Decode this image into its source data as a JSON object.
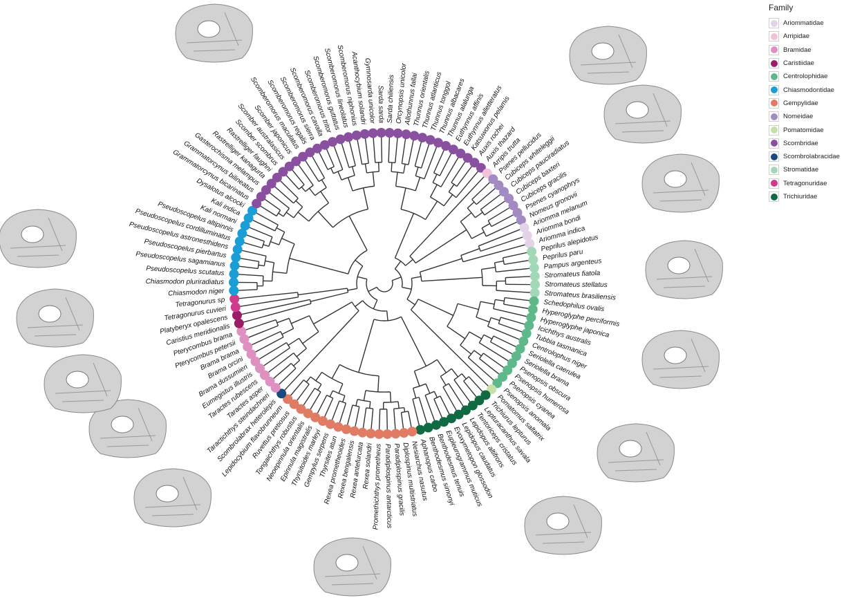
{
  "legend": {
    "title": "Family",
    "items": [
      {
        "label": "Ariommatidae",
        "color": "#e3d3e8"
      },
      {
        "label": "Arripidae",
        "color": "#f2c2da"
      },
      {
        "label": "Bramidae",
        "color": "#de90c0"
      },
      {
        "label": "Caristiidae",
        "color": "#9c1c68"
      },
      {
        "label": "Centrolophidae",
        "color": "#5fb88a"
      },
      {
        "label": "Chiasmodontidae",
        "color": "#1b9ed6"
      },
      {
        "label": "Gempylidae",
        "color": "#e07c64"
      },
      {
        "label": "Nomeidae",
        "color": "#a28ac2"
      },
      {
        "label": "Pomatomidae",
        "color": "#c7e0a6"
      },
      {
        "label": "Scombridae",
        "color": "#8a50a0"
      },
      {
        "label": "Scombrolabracidae",
        "color": "#1a4a80"
      },
      {
        "label": "Stromatidae",
        "color": "#a2d8b8"
      },
      {
        "label": "Tetragonuridae",
        "color": "#d03c8c"
      },
      {
        "label": "Trichiuridae",
        "color": "#0f6a42"
      }
    ]
  },
  "tips": [
    {
      "name": "Sarda chiliensis",
      "family": "Scombridae"
    },
    {
      "name": "Orcynopsis unicolor",
      "family": "Scombridae"
    },
    {
      "name": "Allothunnus fallai",
      "family": "Scombridae"
    },
    {
      "name": "Thunnus orientalis",
      "family": "Scombridae"
    },
    {
      "name": "Thunnus atlanticus",
      "family": "Scombridae"
    },
    {
      "name": "Thunnus tonggol",
      "family": "Scombridae"
    },
    {
      "name": "Thunnus albacares",
      "family": "Scombridae"
    },
    {
      "name": "Thunnus alalunga",
      "family": "Scombridae"
    },
    {
      "name": "Euthynnus affinis",
      "family": "Scombridae"
    },
    {
      "name": "Euthynnus alletteratus",
      "family": "Scombridae"
    },
    {
      "name": "Katsuwonus pelamis",
      "family": "Scombridae"
    },
    {
      "name": "Auxis rochei",
      "family": "Scombridae"
    },
    {
      "name": "Auxis thazard",
      "family": "Scombridae"
    },
    {
      "name": "Arripis trutta",
      "family": "Arripidae"
    },
    {
      "name": "Psenes pellucidus",
      "family": "Nomeidae"
    },
    {
      "name": "Cubiceps whiteleggii",
      "family": "Nomeidae"
    },
    {
      "name": "Cubiceps pauciradiatus",
      "family": "Nomeidae"
    },
    {
      "name": "Cubiceps baxteri",
      "family": "Nomeidae"
    },
    {
      "name": "Cubiceps gracilis",
      "family": "Nomeidae"
    },
    {
      "name": "Psenes cyanophrys",
      "family": "Nomeidae"
    },
    {
      "name": "Nomeus gronovii",
      "family": "Nomeidae"
    },
    {
      "name": "Ariomma melanum",
      "family": "Ariommatidae"
    },
    {
      "name": "Ariomma bondi",
      "family": "Ariommatidae"
    },
    {
      "name": "Ariomma indica",
      "family": "Ariommatidae"
    },
    {
      "name": "Peprilus alepidotus",
      "family": "Stromatidae"
    },
    {
      "name": "Peprilus paru",
      "family": "Stromatidae"
    },
    {
      "name": "Pampus argenteus",
      "family": "Stromatidae"
    },
    {
      "name": "Stromateus fiatola",
      "family": "Stromatidae"
    },
    {
      "name": "Stromateus stellatus",
      "family": "Stromatidae"
    },
    {
      "name": "Stromateus brasiliensis",
      "family": "Stromatidae"
    },
    {
      "name": "Schedophilus ovalis",
      "family": "Centrolophidae"
    },
    {
      "name": "Hyperoglyphe perciformis",
      "family": "Centrolophidae"
    },
    {
      "name": "Hyperoglyphe japonica",
      "family": "Centrolophidae"
    },
    {
      "name": "Icichthys australis",
      "family": "Centrolophidae"
    },
    {
      "name": "Tubbia tasmanica",
      "family": "Centrolophidae"
    },
    {
      "name": "Centrolophus niger",
      "family": "Centrolophidae"
    },
    {
      "name": "Seriolella caerulea",
      "family": "Centrolophidae"
    },
    {
      "name": "Seriolella brama",
      "family": "Centrolophidae"
    },
    {
      "name": "Psenopsis obscura",
      "family": "Centrolophidae"
    },
    {
      "name": "Psenopsis humerosa",
      "family": "Centrolophidae"
    },
    {
      "name": "Psenopsis cyanea",
      "family": "Centrolophidae"
    },
    {
      "name": "Psenopsis anomala",
      "family": "Centrolophidae"
    },
    {
      "name": "Pomatomus saltatrix",
      "family": "Pomatomidae"
    },
    {
      "name": "Trichiurus lepturus",
      "family": "Trichiuridae"
    },
    {
      "name": "Lepturacanthus savala",
      "family": "Trichiuridae"
    },
    {
      "name": "Tentoriceps cristatus",
      "family": "Trichiuridae"
    },
    {
      "name": "Lepidopus altifrons",
      "family": "Trichiuridae"
    },
    {
      "name": "Lepidopus caudatus",
      "family": "Trichiuridae"
    },
    {
      "name": "Evoxymetopon glossodon",
      "family": "Trichiuridae"
    },
    {
      "name": "Eupleurogrammus muticus",
      "family": "Trichiuridae"
    },
    {
      "name": "Benthodesmus tenuis",
      "family": "Trichiuridae"
    },
    {
      "name": "Benthodesmus simonyi",
      "family": "Trichiuridae"
    },
    {
      "name": "Aphanopus carbo",
      "family": "Trichiuridae"
    },
    {
      "name": "Nesiarchus nasutus",
      "family": "Gempylidae"
    },
    {
      "name": "Diplospinus multistriatus",
      "family": "Gempylidae"
    },
    {
      "name": "Paradiplospinus gracilis",
      "family": "Gempylidae"
    },
    {
      "name": "Paradiplospinus antarcticus",
      "family": "Gempylidae"
    },
    {
      "name": "Promethichthys prometheus",
      "family": "Gempylidae"
    },
    {
      "name": "Rexea solandri",
      "family": "Gempylidae"
    },
    {
      "name": "Rexea antefurcata",
      "family": "Gempylidae"
    },
    {
      "name": "Rexea bengalensis",
      "family": "Gempylidae"
    },
    {
      "name": "Rexea prometheoides",
      "family": "Gempylidae"
    },
    {
      "name": "Thyrsites atun",
      "family": "Gempylidae"
    },
    {
      "name": "Gempylus serpens",
      "family": "Gempylidae"
    },
    {
      "name": "Thyrsitoides marleyi",
      "family": "Gempylidae"
    },
    {
      "name": "Epinnula magistralis",
      "family": "Gempylidae"
    },
    {
      "name": "Neoepinnula orientalis",
      "family": "Gempylidae"
    },
    {
      "name": "Tongaichthys robustus",
      "family": "Gempylidae"
    },
    {
      "name": "Ruvettus pretiosus",
      "family": "Gempylidae"
    },
    {
      "name": "Lepidocybium flavobrunneum",
      "family": "Gempylidae"
    },
    {
      "name": "Scombrolabrax heterolepis",
      "family": "Scombrolabracidae"
    },
    {
      "name": "Taractichthys steindachneri",
      "family": "Bramidae"
    },
    {
      "name": "Taractes asper",
      "family": "Bramidae"
    },
    {
      "name": "Taractes rubescens",
      "family": "Bramidae"
    },
    {
      "name": "Eumegistus illustris",
      "family": "Bramidae"
    },
    {
      "name": "Brama dussumieri",
      "family": "Bramidae"
    },
    {
      "name": "Brama orcini",
      "family": "Bramidae"
    },
    {
      "name": "Brama brama",
      "family": "Bramidae"
    },
    {
      "name": "Pterycombus petersii",
      "family": "Bramidae"
    },
    {
      "name": "Pterycombus brama",
      "family": "Bramidae"
    },
    {
      "name": "Caristius meridionalis",
      "family": "Caristiidae"
    },
    {
      "name": "Platyberyx opalescens",
      "family": "Caristiidae"
    },
    {
      "name": "Tetragonurus cuvieri",
      "family": "Tetragonuridae"
    },
    {
      "name": "Tetragonurus sp",
      "family": "Tetragonuridae"
    },
    {
      "name": "Chiasmodon niger",
      "family": "Chiasmodontidae"
    },
    {
      "name": "Chiasmodon pluriradiatus",
      "family": "Chiasmodontidae"
    },
    {
      "name": "Pseudoscopelus scutatus",
      "family": "Chiasmodontidae"
    },
    {
      "name": "Pseudoscopelus sagamianus",
      "family": "Chiasmodontidae"
    },
    {
      "name": "Pseudoscopelus pierbartus",
      "family": "Chiasmodontidae"
    },
    {
      "name": "Pseudoscopelus astronesthidens",
      "family": "Chiasmodontidae"
    },
    {
      "name": "Pseudoscopelus cordilluminatus",
      "family": "Chiasmodontidae"
    },
    {
      "name": "Pseudoscopelus altipinnis",
      "family": "Chiasmodontidae"
    },
    {
      "name": "Kali normani",
      "family": "Chiasmodontidae"
    },
    {
      "name": "Kali indica",
      "family": "Chiasmodontidae"
    },
    {
      "name": "Dysalotus alcocki",
      "family": "Chiasmodontidae"
    },
    {
      "name": "Grammatorcynus bicarinatus",
      "family": "Scombridae"
    },
    {
      "name": "Grammatorcynus bilineatus",
      "family": "Scombridae"
    },
    {
      "name": "Gasterochisma melampus",
      "family": "Scombridae"
    },
    {
      "name": "Rastrelliger kanagurta",
      "family": "Scombridae"
    },
    {
      "name": "Rastrelliger faughni",
      "family": "Scombridae"
    },
    {
      "name": "Scomber scombrus",
      "family": "Scombridae"
    },
    {
      "name": "Scomber australasicus",
      "family": "Scombridae"
    },
    {
      "name": "Scomber japonicus",
      "family": "Scombridae"
    },
    {
      "name": "Scomberomorus maculatus",
      "family": "Scombridae"
    },
    {
      "name": "Scomberomorus regalis",
      "family": "Scombridae"
    },
    {
      "name": "Scomberomorus sierra",
      "family": "Scombridae"
    },
    {
      "name": "Scomberomorus cavalla",
      "family": "Scombridae"
    },
    {
      "name": "Scomberomorus tritor",
      "family": "Scombridae"
    },
    {
      "name": "Scomberomorus guttatus",
      "family": "Scombridae"
    },
    {
      "name": "Scomberomorus lineolatus",
      "family": "Scombridae"
    },
    {
      "name": "Scomberomorus niphonius",
      "family": "Scombridae"
    },
    {
      "name": "Acanthocybium solandri",
      "family": "Scombridae"
    },
    {
      "name": "Gymnosarda unicolor",
      "family": "Scombridae"
    },
    {
      "name": "Sarda sarda",
      "family": "Scombridae"
    }
  ],
  "head_images": [
    {
      "name": "head-scan-top"
    },
    {
      "name": "head-scan-top-right"
    },
    {
      "name": "head-scan-right-1"
    },
    {
      "name": "head-scan-right-2"
    },
    {
      "name": "head-scan-right-3"
    },
    {
      "name": "head-scan-right-4"
    },
    {
      "name": "head-scan-bottom-right-1"
    },
    {
      "name": "head-scan-bottom-right-2"
    },
    {
      "name": "head-scan-bottom"
    },
    {
      "name": "head-scan-bottom-left-1"
    },
    {
      "name": "head-scan-bottom-left-2"
    },
    {
      "name": "head-scan-left-1"
    },
    {
      "name": "head-scan-left-2"
    },
    {
      "name": "head-scan-left-3"
    }
  ]
}
